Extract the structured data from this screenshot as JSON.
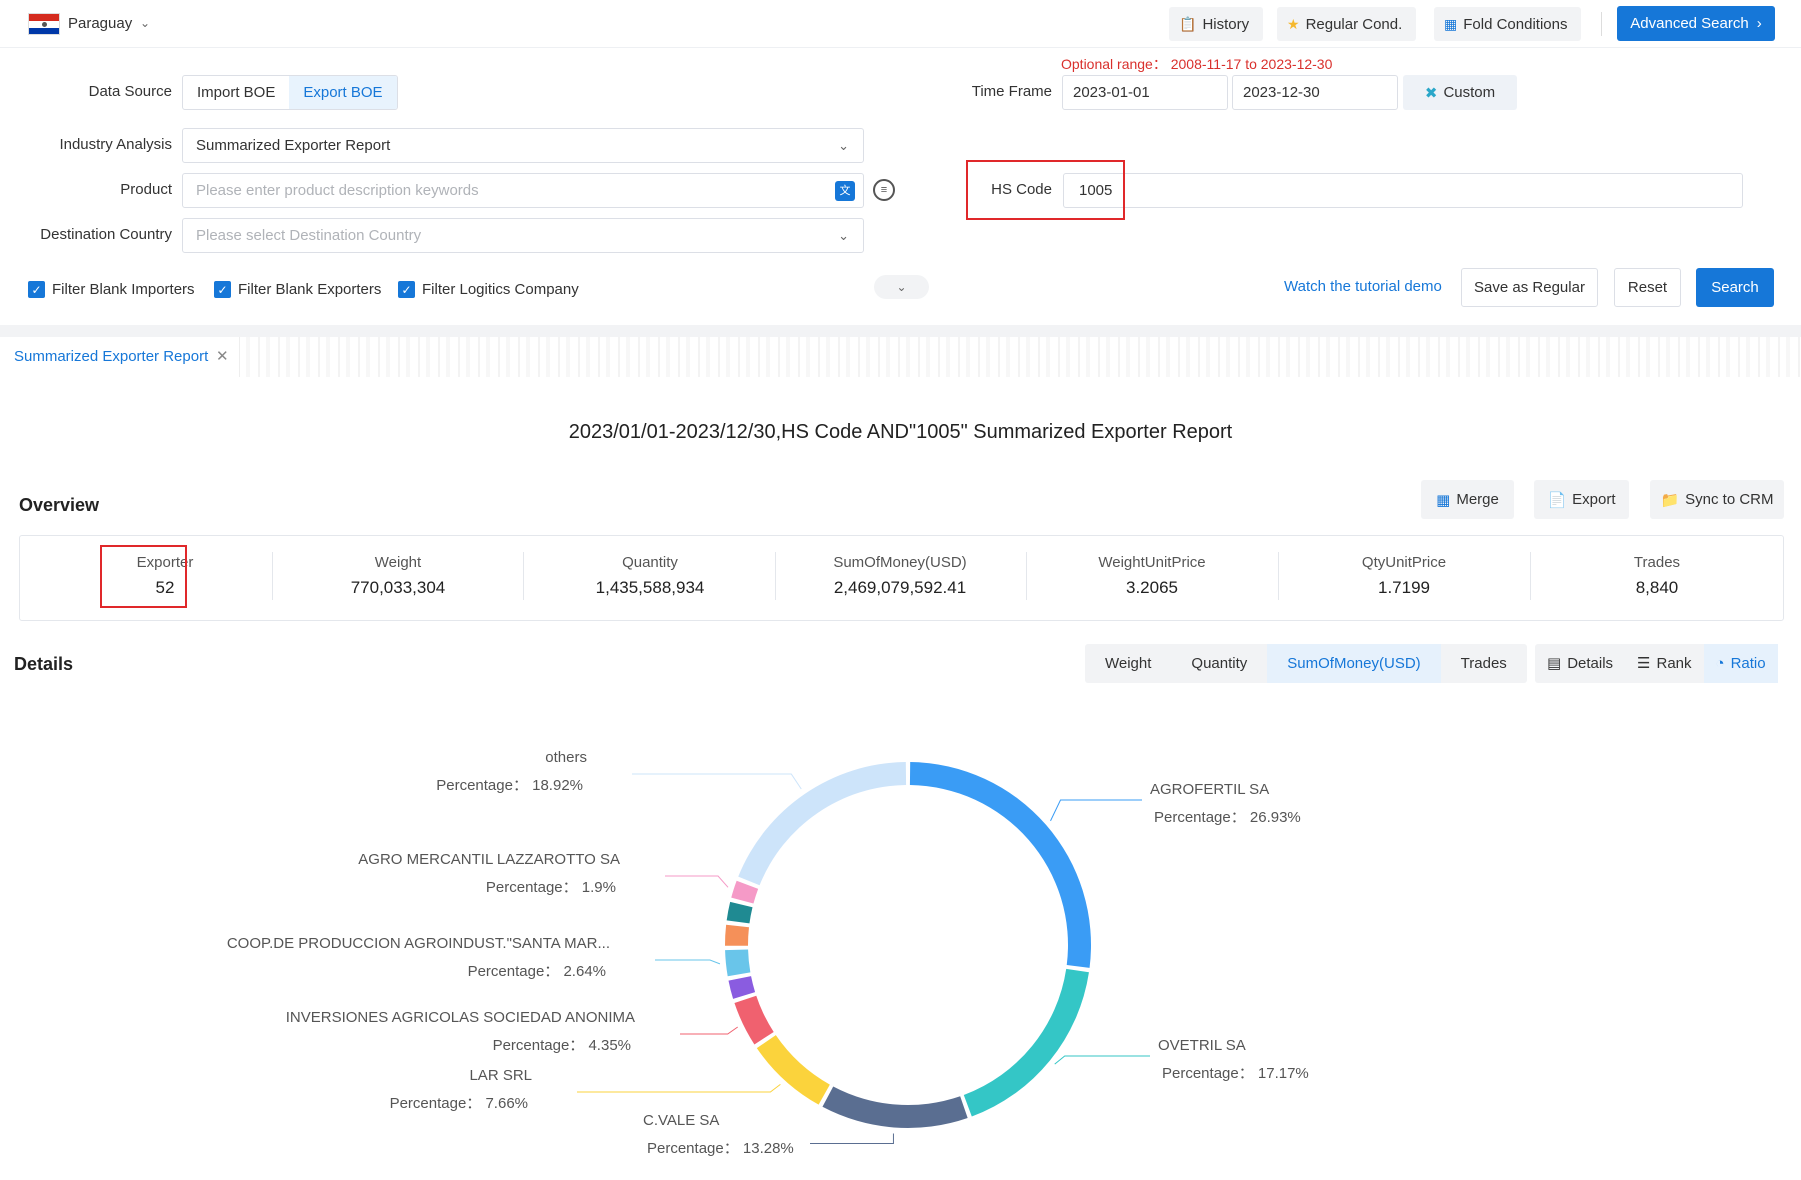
{
  "header": {
    "country": "Paraguay",
    "buttons": {
      "history": "History",
      "regular": "Regular Cond.",
      "fold": "Fold Conditions",
      "advanced": "Advanced Search"
    }
  },
  "form": {
    "data_source_label": "Data Source",
    "data_source_options": [
      "Import BOE",
      "Export BOE"
    ],
    "data_source_selected": "Export BOE",
    "industry_label": "Industry Analysis",
    "industry_value": "Summarized Exporter Report",
    "product_label": "Product",
    "product_placeholder": "Please enter product description keywords",
    "destination_label": "Destination Country",
    "destination_placeholder": "Please select Destination Country",
    "optional_range": "Optional range： 2008-11-17 to 2023-12-30",
    "time_frame_label": "Time Frame",
    "date_from": "2023-01-01",
    "date_to": "2023-12-30",
    "custom_label": "Custom",
    "hs_code_label": "HS Code",
    "hs_code_value": "1005",
    "filters": [
      "Filter Blank Importers",
      "Filter Blank Exporters",
      "Filter Logitics Company"
    ],
    "tutorial_link": "Watch the tutorial demo",
    "save_regular": "Save as Regular",
    "reset": "Reset",
    "search": "Search"
  },
  "tab": {
    "label": "Summarized Exporter Report"
  },
  "report": {
    "title": "2023/01/01-2023/12/30,HS Code AND\"1005\" Summarized Exporter Report",
    "overview_title": "Overview",
    "actions": {
      "merge": "Merge",
      "export": "Export",
      "sync": "Sync to CRM"
    },
    "stats": [
      {
        "label": "Exporter",
        "value": "52"
      },
      {
        "label": "Weight",
        "value": "770,033,304"
      },
      {
        "label": "Quantity",
        "value": "1,435,588,934"
      },
      {
        "label": "SumOfMoney(USD)",
        "value": "2,469,079,592.41"
      },
      {
        "label": "WeightUnitPrice",
        "value": "3.2065"
      },
      {
        "label": "QtyUnitPrice",
        "value": "1.7199"
      },
      {
        "label": "Trades",
        "value": "8,840"
      }
    ],
    "details_title": "Details",
    "metric_tabs": [
      "Weight",
      "Quantity",
      "SumOfMoney(USD)",
      "Trades"
    ],
    "metric_selected": "SumOfMoney(USD)",
    "view_tabs": [
      "Details",
      "Rank",
      "Ratio"
    ],
    "view_selected": "Ratio"
  },
  "chart_data": {
    "type": "pie",
    "donut": true,
    "percentage_prefix": "Percentage：",
    "slices": [
      {
        "name": "AGROFERTIL SA",
        "value": 26.93,
        "color": "#3a9cf5",
        "labeled": true
      },
      {
        "name": "OVETRIL SA",
        "value": 17.17,
        "color": "#34c6c6",
        "labeled": true
      },
      {
        "name": "C.VALE SA",
        "value": 13.28,
        "color": "#5a6e91",
        "labeled": true
      },
      {
        "name": "LAR SRL",
        "value": 7.66,
        "color": "#fbd33c",
        "labeled": true
      },
      {
        "name": "INVERSIONES AGRICOLAS SOCIEDAD ANONIMA",
        "value": 4.35,
        "color": "#f0616f",
        "labeled": true
      },
      {
        "name": "",
        "value": 2.0,
        "color": "#8a5ce0",
        "labeled": false
      },
      {
        "name": "COOP.DE PRODUCCION AGROINDUST.\"SANTA MAR...",
        "value": 2.64,
        "color": "#69c5ea",
        "labeled": true
      },
      {
        "name": "",
        "value": 2.2,
        "color": "#f59059",
        "labeled": false
      },
      {
        "name": "",
        "value": 2.0,
        "color": "#1f8a92",
        "labeled": false
      },
      {
        "name": "AGRO MERCANTIL LAZZAROTTO SA",
        "value": 1.9,
        "color": "#f59ac7",
        "labeled": true
      },
      {
        "name": "others",
        "value": 18.92,
        "color": "#cde4fa",
        "labeled": true
      }
    ]
  }
}
